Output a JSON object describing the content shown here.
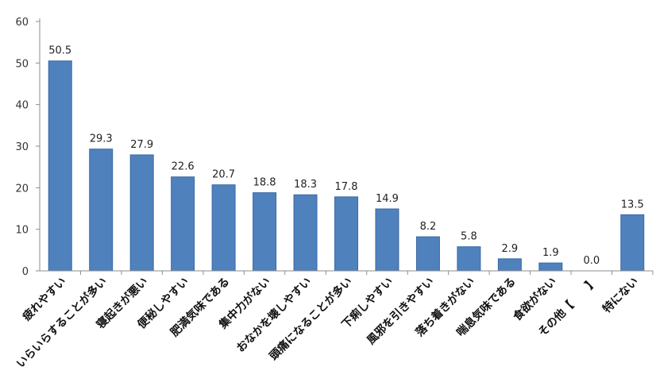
{
  "chart_data": {
    "type": "bar",
    "categories": [
      "疲れやすい",
      "いらいらすることが多い",
      "寝起きが悪い",
      "便秘しやすい",
      "肥満気味である",
      "集中力がない",
      "おなかを壊しやすい",
      "頭痛になることが多い",
      "下痢しやすい",
      "風邪を引きやすい",
      "落ち着きがない",
      "喘息気味である",
      "食欲がない",
      "その他【　　】",
      "特にない"
    ],
    "values": [
      50.5,
      29.3,
      27.9,
      22.6,
      20.7,
      18.8,
      18.3,
      17.8,
      14.9,
      8.2,
      5.8,
      2.9,
      1.9,
      0.0,
      13.5
    ],
    "value_labels": [
      "50.5",
      "29.3",
      "27.9",
      "22.6",
      "20.7",
      "18.8",
      "18.3",
      "17.8",
      "14.9",
      "8.2",
      "5.8",
      "2.9",
      "1.9",
      "0.0",
      "13.5"
    ],
    "yticks": [
      "0",
      "10",
      "20",
      "30",
      "40",
      "50",
      "60"
    ],
    "ylim": [
      0,
      60
    ],
    "title": "",
    "xlabel": "",
    "ylabel": "",
    "grid": false,
    "legend": "none",
    "bar_color": "#4F81BD",
    "bar_edge_color": "#3A6AA6",
    "axis_color": "#8C8C8C"
  }
}
